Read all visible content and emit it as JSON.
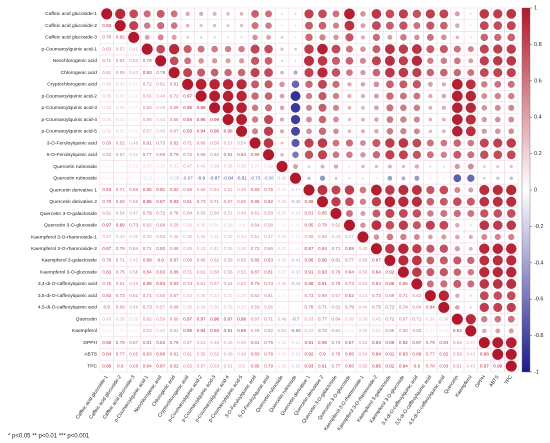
{
  "chart_data": {
    "type": "correlogram",
    "variables": [
      "Caffeic acid glucoside-1",
      "Caffeic acid glucoside-2",
      "Caffeic acid glucoside-3",
      "p-Coumaroylquinic acid-1",
      "Neochlorogenic acid",
      "Chlorogenic acid",
      "Cryptochlorogenic acid",
      "p-Coumaroylquinic acid-2",
      "p-Coumaroylquinic acid-3",
      "p-Coumaroylquinic acid-4",
      "p-Coumaroylquinic acid-5",
      "3-O-Feruloylquinic acid",
      "5-O-Feruloylquinic acid",
      "Quercetin rutinoside",
      "Quercetin rutinoside",
      "Quercetin derivative 1",
      "Quercetin derivative 2",
      "Quercetin 3-O-galactoside",
      "Quercetin 3-O-glucoside",
      "Kaempferol 3-O-rhamnoside-1",
      "Kaempferol 3-O-rhamnoside-2",
      "Kaempferol 3-galactoside",
      "Kaempferol 3-O-glucoside",
      "3,4-di-O-caffeoylquinic acid",
      "3,5-di-O-caffeoylquinic acid",
      "4,5-di-O-caffeoylquinic acid",
      "Quercetin",
      "Kaempferol",
      "DPPH",
      "ABTS",
      "TPC"
    ],
    "matrix": [
      [
        1
      ],
      [
        0.93,
        1
      ],
      [
        0.78,
        0.82,
        1
      ],
      [
        0.63,
        0.57,
        0.41,
        1
      ],
      [
        0.71,
        0.64,
        0.52,
        0.78,
        1
      ],
      [
        0.61,
        0.59,
        0.43,
        0.93,
        0.78,
        1
      ],
      [
        0.36,
        0.31,
        0.22,
        0.72,
        0.61,
        0.81,
        1
      ],
      [
        0.35,
        0.26,
        0.19,
        0.61,
        0.48,
        0.72,
        0.97,
        1
      ],
      [
        0.33,
        0.28,
        0.17,
        0.58,
        0.46,
        0.69,
        0.95,
        0.98,
        1
      ],
      [
        0.29,
        0.24,
        0.13,
        0.56,
        0.43,
        0.66,
        0.94,
        0.96,
        0.99,
        1
      ],
      [
        0.31,
        0.27,
        0.15,
        0.57,
        0.45,
        0.67,
        0.93,
        0.94,
        0.96,
        0.98,
        1
      ],
      [
        0.69,
        0.62,
        0.48,
        0.81,
        0.73,
        0.82,
        0.71,
        0.66,
        0.58,
        0.57,
        0.54,
        1
      ],
      [
        0.62,
        0.57,
        0.41,
        0.77,
        0.69,
        0.79,
        0.72,
        0.68,
        0.62,
        0.81,
        0.84,
        0.88,
        1
      ],
      [
        0.12,
        0.09,
        0.21,
        0.27,
        0.18,
        0.31,
        0.47,
        0.41,
        0.39,
        0.36,
        0.35,
        0.24,
        0.29,
        1
      ],
      [
        0.14,
        0.11,
        0.08,
        -0.21,
        -0.12,
        -0.35,
        -0.67,
        -0.9,
        -0.87,
        -0.84,
        -0.81,
        -0.73,
        -0.58,
        0.42,
        1
      ],
      [
        0.83,
        0.71,
        0.66,
        0.85,
        0.91,
        0.82,
        0.66,
        0.56,
        0.54,
        0.51,
        0.49,
        0.83,
        0.75,
        0.21,
        -0.27,
        1
      ],
      [
        0.78,
        0.69,
        0.55,
        0.96,
        0.87,
        0.93,
        0.81,
        0.73,
        0.71,
        0.67,
        0.66,
        0.86,
        0.82,
        0.33,
        -0.46,
        0.89,
        1
      ],
      [
        0.61,
        0.54,
        0.47,
        0.79,
        0.72,
        0.76,
        0.64,
        0.56,
        0.54,
        0.51,
        0.49,
        0.61,
        0.59,
        0.37,
        -0.23,
        0.81,
        0.85,
        1
      ],
      [
        0.97,
        0.89,
        0.73,
        0.62,
        0.68,
        0.59,
        0.36,
        0.35,
        0.31,
        0.28,
        0.3,
        0.64,
        0.58,
        0.11,
        0.15,
        0.85,
        0.78,
        0.62,
        1
      ],
      [
        0.47,
        0.42,
        0.35,
        0.48,
        0.53,
        0.45,
        0.39,
        0.35,
        0.31,
        0.33,
        0.34,
        0.51,
        0.47,
        0.29,
        -0.13,
        0.59,
        0.56,
        0.43,
        0.47,
        1
      ],
      [
        0.87,
        0.79,
        0.64,
        0.71,
        0.82,
        0.68,
        0.49,
        0.43,
        0.41,
        0.39,
        0.38,
        0.72,
        0.66,
        0.27,
        -0.09,
        0.97,
        0.84,
        0.71,
        0.89,
        0.48,
        1
      ],
      [
        0.78,
        0.71,
        0.42,
        0.89,
        0.9,
        0.87,
        0.69,
        0.66,
        0.62,
        0.59,
        0.58,
        0.85,
        0.83,
        0.33,
        -0.41,
        0.86,
        0.96,
        0.81,
        0.77,
        0.58,
        0.87,
        1
      ],
      [
        0.83,
        0.75,
        0.58,
        0.84,
        0.83,
        0.86,
        0.71,
        0.61,
        0.58,
        0.56,
        0.55,
        0.87,
        0.81,
        0.27,
        -0.33,
        0.91,
        0.93,
        0.79,
        0.84,
        0.56,
        0.94,
        0.92,
        1
      ],
      [
        0.75,
        0.61,
        0.48,
        0.88,
        0.93,
        0.83,
        0.74,
        0.61,
        0.57,
        0.54,
        0.52,
        0.79,
        0.74,
        0.36,
        -0.44,
        0.89,
        0.91,
        0.76,
        0.73,
        0.52,
        0.84,
        0.88,
        0.86,
        1
      ],
      [
        0.83,
        0.73,
        0.61,
        0.71,
        0.56,
        0.67,
        0.42,
        0.36,
        0.33,
        0.31,
        0.29,
        0.62,
        0.61,
        0.14,
        0.09,
        0.73,
        0.69,
        0.57,
        0.82,
        0.41,
        0.73,
        0.69,
        0.71,
        0.62,
        1
      ],
      [
        0.8,
        0.69,
        0.49,
        0.73,
        0.57,
        0.68,
        0.36,
        0.39,
        0.35,
        0.33,
        0.32,
        0.59,
        0.56,
        0.12,
        0.07,
        0.78,
        0.71,
        0.62,
        0.79,
        0.44,
        0.75,
        0.72,
        0.74,
        0.64,
        0.94,
        1
      ],
      [
        0.43,
        0.38,
        0.29,
        0.62,
        0.59,
        0.66,
        0.97,
        0.97,
        0.96,
        0.97,
        0.96,
        0.67,
        0.71,
        0.46,
        -0.7,
        0.53,
        0.77,
        0.64,
        0.38,
        0.39,
        0.45,
        0.72,
        0.67,
        0.71,
        0.36,
        0.39,
        1
      ],
      [
        0.12,
        0.08,
        0.11,
        0.53,
        0.42,
        0.61,
        0.89,
        0.94,
        0.93,
        0.91,
        0.89,
        0.58,
        0.62,
        0.51,
        -0.66,
        0.43,
        0.72,
        0.61,
        0.13,
        0.35,
        0.32,
        0.66,
        0.58,
        0.63,
        0.14,
        0.16,
        0.92,
        1
      ],
      [
        0.86,
        0.79,
        0.67,
        0.81,
        0.83,
        0.79,
        0.57,
        0.51,
        0.48,
        0.46,
        0.45,
        0.81,
        0.76,
        0.22,
        -0.21,
        0.91,
        0.88,
        0.74,
        0.87,
        0.52,
        0.93,
        0.89,
        0.92,
        0.87,
        0.79,
        0.84,
        0.56,
        0.37,
        1
      ],
      [
        0.84,
        0.77,
        0.65,
        0.83,
        0.86,
        0.81,
        0.61,
        0.55,
        0.52,
        0.49,
        0.48,
        0.83,
        0.78,
        0.24,
        -0.25,
        0.92,
        0.9,
        0.76,
        0.85,
        0.54,
        0.94,
        0.91,
        0.93,
        0.89,
        0.77,
        0.82,
        0.59,
        0.41,
        0.98,
        1
      ],
      [
        0.88,
        0.8,
        0.68,
        0.84,
        0.87,
        0.82,
        0.62,
        0.57,
        0.53,
        0.51,
        0.5,
        0.85,
        0.79,
        0.26,
        -0.28,
        0.93,
        0.91,
        0.77,
        0.86,
        0.55,
        0.95,
        0.92,
        0.94,
        0.9,
        0.78,
        0.83,
        0.61,
        0.43,
        0.97,
        0.99,
        1
      ]
    ],
    "colors": [
      "#1a1a8c",
      "#ffffff",
      "#b2182b"
    ],
    "clim": [
      -1,
      1
    ],
    "cticks": [
      -1,
      -0.8,
      -0.6,
      -0.4,
      -0.2,
      0,
      0.2,
      0.4,
      0.6,
      0.8,
      1
    ],
    "footnote": "* p<0.05   ** p<0.01   *** p<0.001"
  }
}
